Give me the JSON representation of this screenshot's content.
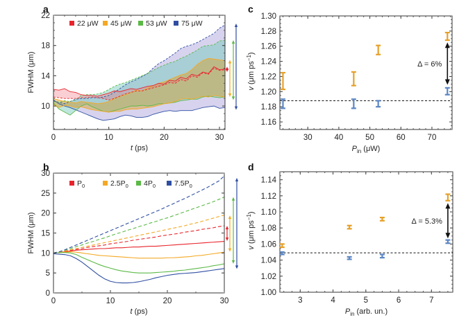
{
  "colors": {
    "red": "#e8232b",
    "orange": "#f4a823",
    "green": "#5bb946",
    "blue": "#2f4ea2",
    "errOrange": "#e6a028",
    "errBlue": "#5b86c4",
    "black": "#111111"
  },
  "chart_data": [
    {
      "id": "a",
      "panel_label": "a",
      "type": "area",
      "xlabel_italic": "t",
      "xlabel_rest": " (ps)",
      "ylabel": "FWHM (μm)",
      "xlim": [
        0,
        31
      ],
      "ylim": [
        6.9,
        22
      ],
      "xticks": [
        0,
        10,
        20,
        30
      ],
      "yticks": [
        10,
        14,
        18,
        22
      ],
      "legend_position": "top",
      "legend": [
        "22 μW",
        "45 μW",
        "53 μW",
        "75 μW"
      ],
      "x": [
        0,
        1,
        2,
        3,
        4,
        5,
        6,
        7,
        8,
        9,
        10,
        11,
        12,
        13,
        14,
        15,
        16,
        17,
        18,
        19,
        20,
        21,
        22,
        23,
        24,
        25,
        26,
        27,
        28,
        29,
        30,
        31
      ],
      "series": [
        {
          "name": "22 μW",
          "color_key": "red",
          "upper": [
            12.2,
            12.1,
            12.3,
            11.9,
            11.8,
            11.5,
            11.4,
            11.4,
            11.3,
            11.5,
            11.7,
            12.0,
            11.9,
            12.1,
            12.3,
            12.2,
            12.4,
            12.6,
            12.7,
            13.0,
            12.9,
            13.4,
            13.3,
            13.8,
            13.6,
            14.2,
            14.0,
            14.5,
            14.3,
            15.2,
            14.8,
            14.9
          ],
          "lower": [
            11.2,
            11.1,
            11.0,
            11.0,
            11.0,
            11.1,
            11.1,
            11.2,
            11.1,
            11.0,
            10.8,
            11.0,
            11.3,
            11.6,
            11.8,
            12.0,
            12.0,
            12.2,
            12.4,
            12.6,
            12.8,
            13.1,
            13.0,
            13.5,
            13.3,
            14.0,
            13.8,
            14.4,
            14.2,
            15.0,
            14.7,
            14.8
          ]
        },
        {
          "name": "45 μW",
          "color_key": "orange",
          "upper": [
            11.0,
            10.8,
            10.6,
            10.5,
            10.4,
            10.6,
            10.5,
            10.4,
            10.3,
            10.4,
            10.6,
            11.0,
            11.3,
            11.5,
            11.8,
            12.1,
            12.0,
            12.4,
            12.7,
            13.0,
            13.2,
            13.5,
            13.8,
            14.1,
            14.3,
            14.8,
            15.5,
            16.0,
            16.3,
            16.2,
            16.1,
            16.0
          ],
          "lower": [
            10.2,
            9.8,
            10.1,
            10.0,
            9.8,
            9.9,
            9.7,
            9.5,
            9.4,
            9.3,
            9.2,
            9.3,
            9.3,
            9.5,
            9.6,
            9.6,
            9.7,
            9.8,
            9.9,
            10.1,
            10.3,
            10.4,
            10.6,
            10.9,
            11.0,
            10.9,
            11.1,
            11.3,
            11.2,
            11.4,
            11.3,
            11.2
          ]
        },
        {
          "name": "53 μW",
          "color_key": "green",
          "upper": [
            10.6,
            10.5,
            10.7,
            10.6,
            10.8,
            11.4,
            11.5,
            11.5,
            11.6,
            11.8,
            12.2,
            12.6,
            12.9,
            13.1,
            13.4,
            13.7,
            14.0,
            14.3,
            14.7,
            15.1,
            15.4,
            15.7,
            15.9,
            16.3,
            16.6,
            17.0,
            17.4,
            17.9,
            18.0,
            18.1,
            18.6,
            18.7
          ],
          "lower": [
            10.4,
            9.6,
            9.2,
            8.8,
            9.4,
            10.0,
            10.3,
            9.9,
            9.6,
            9.3,
            9.2,
            9.4,
            9.6,
            9.8,
            10.0,
            10.0,
            10.1,
            10.0,
            10.1,
            10.3,
            10.3,
            10.4,
            10.5,
            10.7,
            10.8,
            10.9,
            10.9,
            11.2,
            11.3,
            11.2,
            11.1,
            11.2
          ]
        },
        {
          "name": "75 μW",
          "color_key": "blue",
          "upper": [
            10.7,
            10.5,
            10.3,
            10.6,
            10.9,
            11.0,
            11.0,
            11.1,
            11.1,
            11.2,
            11.4,
            11.8,
            12.3,
            12.8,
            13.2,
            13.5,
            13.9,
            14.3,
            15.0,
            15.6,
            16.0,
            16.5,
            17.0,
            17.6,
            17.9,
            18.1,
            18.4,
            18.8,
            19.2,
            19.6,
            20.3,
            20.7
          ],
          "lower": [
            10.8,
            10.3,
            10.0,
            9.8,
            9.5,
            9.2,
            8.9,
            8.6,
            8.3,
            8.1,
            8.2,
            8.3,
            8.6,
            8.8,
            8.7,
            8.5,
            8.5,
            8.6,
            8.9,
            9.1,
            9.3,
            9.4,
            9.3,
            9.4,
            9.4,
            9.4,
            9.6,
            9.8,
            9.9,
            10.0,
            9.7,
            9.8
          ]
        }
      ],
      "range_arrows": [
        {
          "color_key": "red",
          "from": 14.5,
          "to": 15.2
        },
        {
          "color_key": "orange",
          "from": 11.2,
          "to": 16.1
        },
        {
          "color_key": "green",
          "from": 10.8,
          "to": 18.7
        },
        {
          "color_key": "blue",
          "from": 9.5,
          "to": 20.9
        }
      ]
    },
    {
      "id": "b",
      "panel_label": "b",
      "type": "line",
      "xlabel_italic": "t",
      "xlabel_rest": " (ps)",
      "ylabel": "FWHM (μm)",
      "xlim": [
        0,
        30
      ],
      "ylim": [
        0,
        30
      ],
      "xticks": [
        0,
        10,
        20,
        30
      ],
      "yticks": [
        0,
        5,
        10,
        15,
        20,
        25,
        30
      ],
      "legend_position": "top",
      "legend": [
        {
          "main": "P",
          "sub": "0",
          "prefix": ""
        },
        {
          "main": "P",
          "sub": "0",
          "prefix": "2.5"
        },
        {
          "main": "P",
          "sub": "0",
          "prefix": "4"
        },
        {
          "main": "P",
          "sub": "0",
          "prefix": "7.5"
        }
      ],
      "x": [
        0,
        1,
        2,
        3,
        4,
        5,
        6,
        7,
        8,
        9,
        10,
        11,
        12,
        13,
        14,
        15,
        16,
        17,
        18,
        19,
        20,
        21,
        22,
        23,
        24,
        25,
        26,
        27,
        28,
        29,
        30
      ],
      "series": [
        {
          "name": "P0",
          "color_key": "red",
          "style": "solid",
          "values": [
            10.0,
            10.1,
            10.3,
            10.5,
            10.7,
            10.8,
            10.9,
            11.0,
            11.1,
            11.1,
            11.2,
            11.3,
            11.3,
            11.4,
            11.5,
            11.5,
            11.6,
            11.7,
            11.7,
            11.8,
            11.9,
            12.0,
            12.1,
            12.2,
            12.3,
            12.4,
            12.5,
            12.6,
            12.7,
            12.8,
            12.9
          ]
        },
        {
          "name": "P0 dashed",
          "color_key": "red",
          "style": "dashed",
          "values": [
            10.0,
            10.2,
            10.4,
            10.7,
            10.9,
            11.1,
            11.4,
            11.6,
            11.8,
            12.0,
            12.3,
            12.5,
            12.7,
            12.9,
            13.2,
            13.4,
            13.6,
            13.8,
            14.0,
            14.3,
            14.5,
            14.7,
            14.9,
            15.2,
            15.4,
            15.6,
            15.9,
            16.1,
            16.3,
            16.6,
            16.8
          ]
        },
        {
          "name": "2.5P0",
          "color_key": "orange",
          "style": "solid",
          "values": [
            10.0,
            10.1,
            10.2,
            10.3,
            10.2,
            10.0,
            9.8,
            9.6,
            9.4,
            9.3,
            9.2,
            9.1,
            9.0,
            8.9,
            8.8,
            8.7,
            8.7,
            8.7,
            8.7,
            8.7,
            8.8,
            8.8,
            8.9,
            9.0,
            9.1,
            9.3,
            9.4,
            9.6,
            9.8,
            10.0,
            10.2
          ]
        },
        {
          "name": "2.5P0 dashed",
          "color_key": "orange",
          "style": "dashed",
          "values": [
            10.0,
            10.2,
            10.5,
            10.8,
            11.1,
            11.4,
            11.7,
            12.0,
            12.3,
            12.6,
            12.9,
            13.2,
            13.5,
            13.8,
            14.1,
            14.4,
            14.7,
            15.0,
            15.3,
            15.6,
            15.9,
            16.2,
            16.5,
            16.8,
            17.2,
            17.5,
            17.9,
            18.3,
            18.7,
            19.1,
            19.5
          ]
        },
        {
          "name": "4P0",
          "color_key": "green",
          "style": "solid",
          "values": [
            10.0,
            10.1,
            10.1,
            10.0,
            9.6,
            8.9,
            8.3,
            7.7,
            7.1,
            6.6,
            6.2,
            5.8,
            5.5,
            5.3,
            5.1,
            5.0,
            5.0,
            5.0,
            5.1,
            5.2,
            5.3,
            5.4,
            5.6,
            5.7,
            5.9,
            6.1,
            6.3,
            6.5,
            6.8,
            7.0,
            7.3
          ]
        },
        {
          "name": "4P0 dashed",
          "color_key": "green",
          "style": "dashed",
          "values": [
            10.0,
            10.3,
            10.7,
            11.1,
            11.6,
            12.0,
            12.5,
            12.9,
            13.4,
            13.8,
            14.3,
            14.8,
            15.2,
            15.7,
            16.1,
            16.6,
            17.0,
            17.5,
            17.9,
            18.4,
            18.8,
            19.3,
            19.8,
            20.3,
            20.8,
            21.3,
            21.8,
            22.3,
            22.8,
            23.4,
            24.0
          ]
        },
        {
          "name": "7.5P0",
          "color_key": "blue",
          "style": "solid",
          "values": [
            9.8,
            9.7,
            9.6,
            9.3,
            8.6,
            7.7,
            6.6,
            5.5,
            4.4,
            3.5,
            2.9,
            2.6,
            2.5,
            2.5,
            2.6,
            2.8,
            3.1,
            3.4,
            3.8,
            4.1,
            4.4,
            4.6,
            4.8,
            4.9,
            5.0,
            5.1,
            5.3,
            5.5,
            5.7,
            5.9,
            6.1
          ]
        },
        {
          "name": "7.5P0 dashed",
          "color_key": "blue",
          "style": "dashed",
          "values": [
            10.0,
            10.3,
            10.8,
            11.4,
            12.0,
            12.6,
            13.2,
            13.8,
            14.4,
            15.0,
            15.6,
            16.2,
            16.8,
            17.4,
            18.0,
            18.6,
            19.2,
            19.8,
            20.4,
            21.0,
            21.7,
            22.3,
            23.0,
            23.6,
            24.3,
            25.0,
            25.7,
            26.4,
            27.2,
            28.0,
            29.3
          ]
        }
      ],
      "range_arrows": [
        {
          "color_key": "red",
          "from": 13.0,
          "to": 16.8
        },
        {
          "color_key": "orange",
          "from": 10.3,
          "to": 19.4
        },
        {
          "color_key": "green",
          "from": 7.3,
          "to": 24.0
        },
        {
          "color_key": "blue",
          "from": 6.0,
          "to": 28.8
        }
      ]
    },
    {
      "id": "c",
      "panel_label": "c",
      "type": "scatter",
      "xlabel_main": "P",
      "xlabel_sub": "in",
      "xlabel_rest": " (μW)",
      "ylabel_italic": "v",
      "ylabel_rest": " (μm ps",
      "ylabel_sup": "−1",
      "ylabel_end": ")",
      "xlim": [
        21,
        76.5
      ],
      "ylim": [
        1.15,
        1.3
      ],
      "xticks": [
        30,
        40,
        50,
        60,
        70
      ],
      "yticks": [
        1.16,
        1.18,
        1.2,
        1.22,
        1.24,
        1.26,
        1.28,
        1.3
      ],
      "ytick_labels": [
        "1.16",
        "1.18",
        "1.20",
        "1.22",
        "1.24",
        "1.26",
        "1.28",
        "1.30"
      ],
      "reference_line": 1.188,
      "series": [
        {
          "name": "orange",
          "color_key": "errOrange",
          "points": [
            {
              "x": 22,
              "low": 1.203,
              "high": 1.225
            },
            {
              "x": 44.8,
              "low": 1.208,
              "high": 1.226
            },
            {
              "x": 52.7,
              "low": 1.249,
              "high": 1.261
            },
            {
              "x": 75,
              "low": 1.268,
              "high": 1.278
            }
          ]
        },
        {
          "name": "blue",
          "color_key": "errBlue",
          "points": [
            {
              "x": 22,
              "low": 1.178,
              "high": 1.19
            },
            {
              "x": 44.8,
              "low": 1.178,
              "high": 1.19
            },
            {
              "x": 52.7,
              "low": 1.18,
              "high": 1.188
            },
            {
              "x": 75,
              "low": 1.196,
              "high": 1.205
            }
          ]
        }
      ],
      "annotation": {
        "text": "Δ = 6%",
        "arrow_from": 1.209,
        "arrow_to": 1.265,
        "arrow_x": 75
      }
    },
    {
      "id": "d",
      "panel_label": "d",
      "type": "scatter",
      "xlabel_main": "P",
      "xlabel_sub": "in",
      "xlabel_rest": " (arb. un.)",
      "ylabel_italic": "v",
      "ylabel_rest": " (μm ps",
      "ylabel_sup": "−1",
      "ylabel_end": ")",
      "xlim": [
        2.38,
        7.65
      ],
      "ylim": [
        1.0,
        1.15
      ],
      "xticks": [
        3,
        4,
        5,
        6,
        7
      ],
      "yticks": [
        1.0,
        1.02,
        1.04,
        1.06,
        1.08,
        1.1,
        1.12,
        1.14
      ],
      "ytick_labels": [
        "1.00",
        "1.02",
        "1.04",
        "1.06",
        "1.08",
        "1.10",
        "1.12",
        "1.14"
      ],
      "reference_line": 1.049,
      "series": [
        {
          "name": "orange",
          "color_key": "errOrange",
          "points": [
            {
              "x": 2.45,
              "low": 1.056,
              "high": 1.06
            },
            {
              "x": 4.5,
              "low": 1.079,
              "high": 1.083
            },
            {
              "x": 5.5,
              "low": 1.089,
              "high": 1.093
            },
            {
              "x": 7.5,
              "low": 1.114,
              "high": 1.122
            }
          ]
        },
        {
          "name": "blue",
          "color_key": "errBlue",
          "points": [
            {
              "x": 2.45,
              "low": 1.047,
              "high": 1.05
            },
            {
              "x": 4.5,
              "low": 1.041,
              "high": 1.044
            },
            {
              "x": 5.5,
              "low": 1.043,
              "high": 1.047
            },
            {
              "x": 7.5,
              "low": 1.061,
              "high": 1.065
            }
          ]
        }
      ],
      "annotation": {
        "text": "Δ = 5.3%",
        "arrow_from": 1.067,
        "arrow_to": 1.111,
        "arrow_x": 7.5
      }
    }
  ]
}
